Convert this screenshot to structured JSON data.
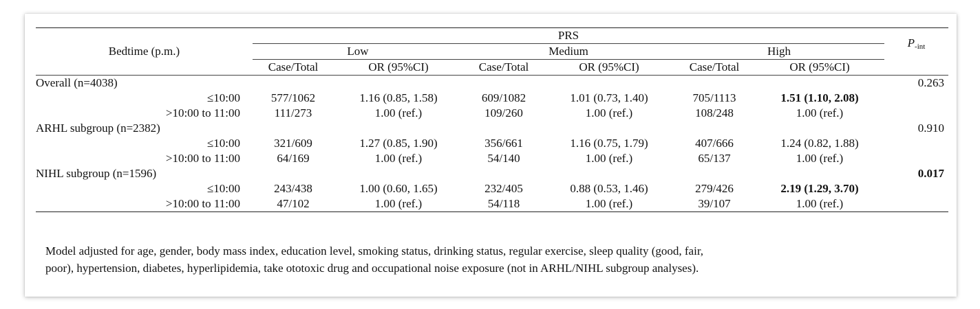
{
  "table": {
    "header": {
      "row_label": "Bedtime (p.m.)",
      "group": "PRS",
      "levels": [
        "Low",
        "Medium",
        "High"
      ],
      "sub_columns": [
        "Case/Total",
        "OR (95%CI)",
        "Case/Total",
        "OR (95%CI)",
        "Case/Total",
        "OR (95%CI)"
      ],
      "pint_main": "P",
      "pint_sub": "-int"
    },
    "sections": [
      {
        "label": "Overall (n=4038)",
        "p_int": "0.263",
        "rows": [
          {
            "label": "≤10:00",
            "cells": [
              "577/1062",
              "1.16 (0.85, 1.58)",
              "609/1082",
              "1.01 (0.73, 1.40)",
              "705/1113",
              "1.51 (1.10, 2.08)"
            ]
          },
          {
            "label": ">10:00 to 11:00",
            "cells": [
              "111/273",
              "1.00 (ref.)",
              "109/260",
              "1.00 (ref.)",
              "108/248",
              "1.00 (ref.)"
            ]
          }
        ]
      },
      {
        "label": "ARHL subgroup (n=2382)",
        "p_int": "0.910",
        "rows": [
          {
            "label": "≤10:00",
            "cells": [
              "321/609",
              "1.27 (0.85, 1.90)",
              "356/661",
              "1.16 (0.75, 1.79)",
              "407/666",
              "1.24 (0.82, 1.88)"
            ]
          },
          {
            "label": ">10:00 to 11:00",
            "cells": [
              "64/169",
              "1.00 (ref.)",
              "54/140",
              "1.00 (ref.)",
              "65/137",
              "1.00 (ref.)"
            ]
          }
        ]
      },
      {
        "label": "NIHL subgroup (n=1596)",
        "p_int": "0.017",
        "rows": [
          {
            "label": "≤10:00",
            "cells": [
              "243/438",
              "1.00 (0.60, 1.65)",
              "232/405",
              "0.88 (0.53, 1.46)",
              "279/426",
              "2.19 (1.29, 3.70)"
            ]
          },
          {
            "label": ">10:00 to 11:00",
            "cells": [
              "47/102",
              "1.00 (ref.)",
              "54/118",
              "1.00 (ref.)",
              "39/107",
              "1.00 (ref.)"
            ]
          }
        ]
      }
    ],
    "footnote_line1": "Model adjusted for age, gender, body mass index, education level, smoking status, drinking status, regular exercise, sleep quality (good, fair,",
    "footnote_line2": "poor), hypertension, diabetes, hyperlipidemia, take ototoxic drug and occupational noise exposure (not in ARHL/NIHL subgroup analyses)."
  }
}
